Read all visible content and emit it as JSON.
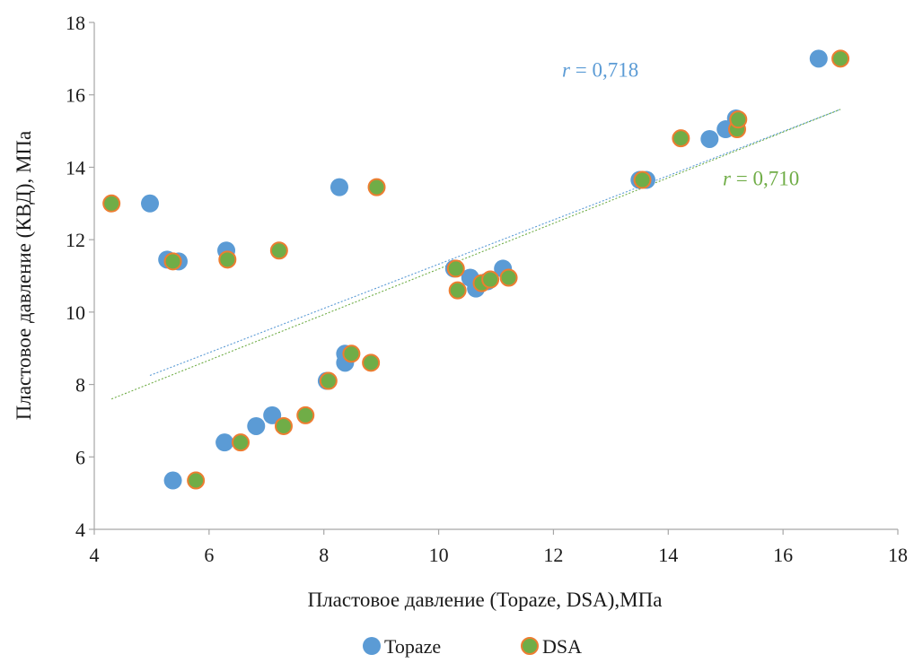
{
  "chart_data": {
    "type": "scatter",
    "xlabel": "Пластовое давление (Topaze, DSA),МПа",
    "ylabel": "Пластовое давление (КВД), МПа",
    "xlim": [
      4,
      18
    ],
    "ylim": [
      4,
      18
    ],
    "xticks": [
      4,
      6,
      8,
      10,
      12,
      14,
      16,
      18
    ],
    "yticks": [
      4,
      6,
      8,
      10,
      12,
      14,
      16,
      18
    ],
    "grid": false,
    "legend_position": "bottom",
    "series": [
      {
        "name": "Topaze",
        "color": "#5b9bd5",
        "edge_color": "#5b9bd5",
        "points": [
          [
            4.97,
            13.0
          ],
          [
            5.27,
            11.45
          ],
          [
            5.47,
            11.4
          ],
          [
            5.37,
            5.35
          ],
          [
            6.3,
            11.7
          ],
          [
            6.27,
            6.4
          ],
          [
            6.82,
            6.85
          ],
          [
            7.1,
            7.15
          ],
          [
            8.27,
            13.45
          ],
          [
            8.05,
            8.1
          ],
          [
            8.37,
            8.85
          ],
          [
            8.37,
            8.6
          ],
          [
            10.27,
            11.2
          ],
          [
            10.55,
            10.95
          ],
          [
            10.65,
            10.65
          ],
          [
            10.85,
            10.85
          ],
          [
            11.12,
            11.2
          ],
          [
            13.5,
            13.65
          ],
          [
            13.62,
            13.65
          ],
          [
            14.72,
            14.78
          ],
          [
            15.0,
            15.05
          ],
          [
            15.18,
            15.35
          ],
          [
            16.62,
            17.0
          ]
        ],
        "trend": {
          "from": [
            4.97,
            8.25
          ],
          "to": [
            17.0,
            15.6
          ],
          "color": "#5b9bd5"
        }
      },
      {
        "name": "DSA",
        "color": "#70ad47",
        "edge_color": "#ed7d31",
        "points": [
          [
            4.3,
            13.0
          ],
          [
            5.37,
            11.4
          ],
          [
            5.77,
            5.35
          ],
          [
            6.32,
            11.45
          ],
          [
            6.55,
            6.4
          ],
          [
            7.22,
            11.7
          ],
          [
            7.3,
            6.85
          ],
          [
            7.68,
            7.15
          ],
          [
            8.08,
            8.1
          ],
          [
            8.48,
            8.85
          ],
          [
            8.82,
            8.6
          ],
          [
            8.92,
            13.45
          ],
          [
            10.3,
            11.2
          ],
          [
            10.33,
            10.6
          ],
          [
            10.75,
            10.8
          ],
          [
            10.9,
            10.9
          ],
          [
            11.22,
            10.95
          ],
          [
            13.55,
            13.65
          ],
          [
            14.22,
            14.8
          ],
          [
            15.2,
            15.05
          ],
          [
            15.22,
            15.32
          ],
          [
            17.0,
            17.0
          ]
        ],
        "trend": {
          "from": [
            4.3,
            7.6
          ],
          "to": [
            17.0,
            15.6
          ],
          "color": "#70ad47"
        }
      }
    ],
    "annotations": [
      {
        "italic": "r",
        "text": " = 0,718",
        "x": 12.15,
        "y": 16.5,
        "color": "#5b9bd5"
      },
      {
        "italic": "r",
        "text": " = 0,710",
        "x": 14.95,
        "y": 13.5,
        "color": "#70ad47"
      }
    ]
  }
}
